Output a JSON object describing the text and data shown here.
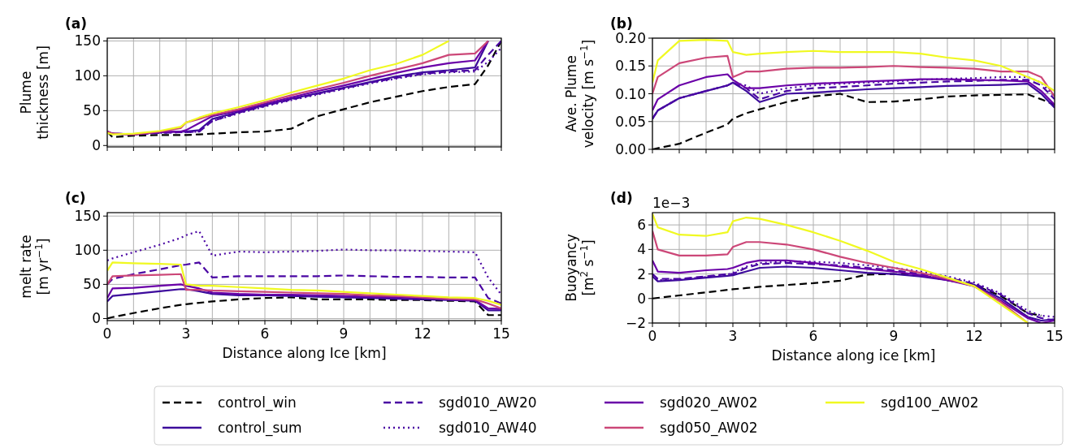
{
  "chart_data": [
    {
      "type": "line",
      "title": "(a)",
      "ylabel": "Plume\nthickness [m]",
      "xlim": [
        0,
        15
      ],
      "ylim": [
        -2,
        154
      ],
      "yticks": [
        0,
        50,
        100,
        150
      ],
      "tick_labels": "y",
      "grid": true,
      "legend": "bottom",
      "xticks": [
        0,
        {
          "value": 1,
          "label": null
        },
        {
          "value": 2,
          "label": null
        },
        3,
        {
          "value": 4,
          "label": null
        },
        {
          "value": 5,
          "label": null
        },
        6,
        {
          "value": 7,
          "label": null
        },
        {
          "value": 8,
          "label": null
        },
        9,
        {
          "value": 10,
          "label": null
        },
        {
          "value": 11,
          "label": null
        },
        12,
        {
          "value": 13,
          "label": null
        },
        {
          "value": 14,
          "label": null
        },
        15
      ],
      "x": [
        0,
        0.2,
        1,
        2,
        2.8,
        3,
        3.5,
        4,
        5,
        6,
        7,
        8,
        9,
        10,
        11,
        12,
        13,
        14,
        14.5,
        15
      ],
      "series": [
        {
          "name": "control_win",
          "color": "#000000",
          "line_style": "dashed",
          "values": [
            20,
            12,
            14,
            15,
            15,
            15,
            16,
            17,
            19,
            20,
            24,
            42,
            52,
            62,
            70,
            78,
            84,
            88,
            115,
            150
          ]
        },
        {
          "name": "control_sum",
          "color": "#3c0a9c",
          "line_style": "solid",
          "values": [
            20,
            17,
            16,
            19,
            20,
            20,
            22,
            38,
            48,
            58,
            67,
            75,
            83,
            91,
            99,
            105,
            108,
            112,
            150,
            null
          ]
        },
        {
          "name": "sgd010_AW20",
          "color": "#4a06a3",
          "line_style": "dashed",
          "values": [
            20,
            17,
            16,
            18,
            19,
            19,
            20,
            35,
            47,
            57,
            66,
            74,
            82,
            90,
            97,
            103,
            106,
            108,
            130,
            150
          ]
        },
        {
          "name": "sgd010_AW40",
          "color": "#4a06a3",
          "line_style": "dotted",
          "values": [
            20,
            17,
            16,
            18,
            19,
            19,
            20,
            35,
            46,
            56,
            65,
            73,
            81,
            89,
            96,
            102,
            105,
            106,
            120,
            140
          ]
        },
        {
          "name": "sgd020_AW02",
          "color": "#6a00a8",
          "line_style": "solid",
          "values": [
            20,
            17,
            16,
            19,
            20,
            22,
            32,
            42,
            50,
            60,
            69,
            78,
            86,
            95,
            104,
            112,
            118,
            122,
            150,
            null
          ]
        },
        {
          "name": "sgd050_AW02",
          "color": "#cc4778",
          "line_style": "solid",
          "values": [
            20,
            17,
            16,
            20,
            25,
            33,
            38,
            44,
            52,
            62,
            72,
            81,
            90,
            100,
            109,
            118,
            130,
            132,
            150,
            null
          ]
        },
        {
          "name": "sgd100_AW02",
          "color": "#f0f921",
          "line_style": "solid",
          "values": [
            18,
            16,
            17,
            21,
            27,
            33,
            40,
            46,
            55,
            65,
            76,
            86,
            96,
            108,
            117,
            130,
            150,
            null,
            null,
            null
          ]
        }
      ]
    },
    {
      "type": "line",
      "title": "(b)",
      "ylabel": "Ave. Plume\nvelocity [m s$^{−1}$]",
      "xlim": [
        0,
        15
      ],
      "ylim": [
        0,
        0.2
      ],
      "yticks": [
        {
          "value": 0,
          "label": "0.00"
        },
        {
          "value": 0.05,
          "label": "0.05"
        },
        {
          "value": 0.1,
          "label": "0.10"
        },
        {
          "value": 0.15,
          "label": "0.15"
        },
        {
          "value": 0.2,
          "label": "0.20"
        }
      ],
      "tick_labels": "y",
      "grid": true,
      "xticks": [
        0,
        {
          "value": 1,
          "label": null
        },
        {
          "value": 2,
          "label": null
        },
        3,
        {
          "value": 4,
          "label": null
        },
        {
          "value": 5,
          "label": null
        },
        6,
        {
          "value": 7,
          "label": null
        },
        {
          "value": 8,
          "label": null
        },
        9,
        {
          "value": 10,
          "label": null
        },
        {
          "value": 11,
          "label": null
        },
        12,
        {
          "value": 13,
          "label": null
        },
        {
          "value": 14,
          "label": null
        },
        15
      ],
      "x": [
        0,
        0.2,
        1,
        2,
        2.8,
        3,
        3.5,
        4,
        5,
        6,
        7,
        8,
        9,
        10,
        11,
        12,
        13,
        14,
        14.5,
        15
      ],
      "series": [
        {
          "color": "#000000",
          "line_style": "dashed",
          "values": [
            0,
            0.002,
            0.01,
            0.03,
            0.045,
            0.055,
            0.065,
            0.072,
            0.085,
            0.095,
            0.1,
            0.085,
            0.086,
            0.09,
            0.095,
            0.097,
            0.098,
            0.099,
            0.09,
            0.08
          ]
        },
        {
          "color": "#3c0a9c",
          "line_style": "solid",
          "values": [
            0.055,
            0.07,
            0.092,
            0.105,
            0.115,
            0.12,
            0.105,
            0.085,
            0.1,
            0.102,
            0.105,
            0.108,
            0.11,
            0.112,
            0.114,
            0.115,
            0.116,
            0.118,
            0.1,
            0.075
          ]
        },
        {
          "color": "#4a06a3",
          "line_style": "dashed",
          "values": [
            0.055,
            0.07,
            0.092,
            0.105,
            0.115,
            0.12,
            0.11,
            0.09,
            0.105,
            0.11,
            0.112,
            0.115,
            0.118,
            0.12,
            0.122,
            0.123,
            0.125,
            0.125,
            0.115,
            0.09
          ]
        },
        {
          "color": "#4a06a3",
          "line_style": "dotted",
          "values": [
            0.055,
            0.07,
            0.092,
            0.105,
            0.115,
            0.12,
            0.115,
            0.1,
            0.11,
            0.115,
            0.118,
            0.12,
            0.122,
            0.125,
            0.127,
            0.128,
            0.13,
            0.13,
            0.12,
            0.095
          ]
        },
        {
          "color": "#6a00a8",
          "line_style": "solid",
          "values": [
            0.07,
            0.09,
            0.115,
            0.13,
            0.135,
            0.125,
            0.11,
            0.11,
            0.115,
            0.118,
            0.12,
            0.122,
            0.124,
            0.126,
            0.126,
            0.125,
            0.124,
            0.122,
            0.105,
            0.08
          ]
        },
        {
          "color": "#cc4778",
          "line_style": "solid",
          "values": [
            0.1,
            0.13,
            0.155,
            0.165,
            0.168,
            0.13,
            0.14,
            0.14,
            0.145,
            0.147,
            0.147,
            0.148,
            0.15,
            0.148,
            0.147,
            0.145,
            0.14,
            0.14,
            0.13,
            0.095
          ]
        },
        {
          "color": "#f0f921",
          "line_style": "solid",
          "values": [
            0.12,
            0.16,
            0.195,
            0.197,
            0.195,
            0.175,
            0.17,
            0.172,
            0.175,
            0.177,
            0.175,
            0.175,
            0.175,
            0.172,
            0.165,
            0.16,
            0.15,
            0.13,
            0.12,
            0.105
          ]
        }
      ]
    },
    {
      "type": "line",
      "title": "(c)",
      "ylabel": "melt rate\n[m yr$^{−1}$]",
      "xlabel": "Distance along Ice [km]",
      "xlim": [
        0,
        15
      ],
      "ylim": [
        -3,
        155
      ],
      "yticks": [
        0,
        50,
        100,
        150
      ],
      "grid": true,
      "xticks": [
        0,
        {
          "value": 1,
          "label": null
        },
        {
          "value": 2,
          "label": null
        },
        3,
        {
          "value": 4,
          "label": null
        },
        {
          "value": 5,
          "label": null
        },
        6,
        {
          "value": 7,
          "label": null
        },
        {
          "value": 8,
          "label": null
        },
        9,
        {
          "value": 10,
          "label": null
        },
        {
          "value": 11,
          "label": null
        },
        12,
        {
          "value": 13,
          "label": null
        },
        {
          "value": 14,
          "label": null
        },
        15
      ],
      "x": [
        0,
        0.2,
        1,
        2,
        2.8,
        3,
        3.5,
        4,
        5,
        6,
        7,
        8,
        9,
        10,
        11,
        12,
        13,
        14,
        14.5,
        15
      ],
      "series": [
        {
          "color": "#000000",
          "line_style": "dashed",
          "values": [
            0,
            2,
            8,
            15,
            20,
            21,
            23,
            25,
            28,
            30,
            31,
            28,
            28,
            28,
            27,
            27,
            26,
            25,
            5,
            5
          ]
        },
        {
          "color": "#3c0a9c",
          "line_style": "solid",
          "values": [
            25,
            33,
            36,
            40,
            43,
            43,
            40,
            36,
            34,
            34,
            33,
            32,
            31,
            30,
            29,
            28,
            27,
            26,
            12,
            12
          ]
        },
        {
          "color": "#4a06a3",
          "line_style": "dashed",
          "values": [
            50,
            58,
            65,
            72,
            78,
            79,
            82,
            60,
            62,
            62,
            62,
            62,
            63,
            62,
            61,
            61,
            60,
            60,
            30,
            22
          ]
        },
        {
          "color": "#4a06a3",
          "line_style": "dotted",
          "values": [
            85,
            88,
            97,
            108,
            118,
            122,
            128,
            92,
            98,
            97,
            98,
            99,
            101,
            100,
            100,
            99,
            98,
            97,
            60,
            35
          ]
        },
        {
          "color": "#6a00a8",
          "line_style": "solid",
          "values": [
            30,
            44,
            45,
            48,
            50,
            48,
            44,
            38,
            36,
            35,
            35,
            34,
            33,
            32,
            31,
            30,
            28,
            27,
            15,
            14
          ]
        },
        {
          "color": "#cc4778",
          "line_style": "solid",
          "values": [
            50,
            62,
            63,
            64,
            65,
            42,
            42,
            41,
            40,
            39,
            38,
            37,
            36,
            34,
            33,
            31,
            29,
            28,
            22,
            15
          ]
        },
        {
          "color": "#f0f921",
          "line_style": "solid",
          "values": [
            70,
            82,
            81,
            80,
            79,
            50,
            48,
            48,
            46,
            44,
            42,
            41,
            39,
            37,
            35,
            33,
            31,
            30,
            26,
            20
          ]
        }
      ]
    },
    {
      "type": "line",
      "title": "(d)",
      "ylabel": "Buoyancy\n[m$^{2}$ s$^{−1}$]",
      "xlabel": "Distance along ice [km]",
      "annotations": [
        "1e−3"
      ],
      "xlim": [
        0,
        15
      ],
      "ylim": [
        -2,
        7
      ],
      "yticks": [
        {
          "value": -2,
          "label": "−2"
        },
        0,
        2,
        4,
        6
      ],
      "grid": true,
      "xticks": [
        0,
        {
          "value": 1,
          "label": null
        },
        {
          "value": 2,
          "label": null
        },
        3,
        {
          "value": 4,
          "label": null
        },
        {
          "value": 5,
          "label": null
        },
        6,
        {
          "value": 7,
          "label": null
        },
        {
          "value": 8,
          "label": null
        },
        9,
        {
          "value": 10,
          "label": null
        },
        {
          "value": 11,
          "label": null
        },
        12,
        {
          "value": 13,
          "label": null
        },
        {
          "value": 14,
          "label": null
        },
        15
      ],
      "x": [
        0,
        0.2,
        1,
        2,
        2.8,
        3,
        3.5,
        4,
        5,
        6,
        7,
        8,
        9,
        10,
        11,
        12,
        13,
        14,
        14.5,
        15
      ],
      "series": [
        {
          "color": "#000000",
          "line_style": "dashed",
          "values": [
            0,
            0.05,
            0.25,
            0.5,
            0.7,
            0.75,
            0.85,
            0.95,
            1.1,
            1.25,
            1.45,
            1.95,
            2,
            1.9,
            1.5,
            1.1,
            0.2,
            -1.2,
            -1.4,
            null
          ]
        },
        {
          "color": "#3c0a9c",
          "line_style": "solid",
          "values": [
            1.8,
            1.4,
            1.5,
            1.7,
            1.85,
            1.9,
            2.2,
            2.5,
            2.6,
            2.5,
            2.3,
            2.1,
            2,
            1.8,
            1.5,
            1.1,
            0,
            -1.5,
            -1.8,
            -1.7
          ]
        },
        {
          "color": "#4a06a3",
          "line_style": "dashed",
          "values": [
            2,
            1.6,
            1.6,
            1.8,
            2,
            2,
            2.5,
            2.8,
            2.9,
            2.8,
            2.7,
            2.5,
            2.3,
            2,
            1.7,
            1.2,
            0.3,
            -1.2,
            -1.6,
            -1.8
          ]
        },
        {
          "color": "#4a06a3",
          "line_style": "dotted",
          "values": [
            1.9,
            1.5,
            1.55,
            1.75,
            1.95,
            2.1,
            2.6,
            2.9,
            3,
            3,
            2.9,
            2.7,
            2.5,
            2.2,
            1.8,
            1.3,
            0.4,
            -1,
            -1.4,
            -1.5
          ]
        },
        {
          "color": "#6a00a8",
          "line_style": "solid",
          "values": [
            3.1,
            2.2,
            2.1,
            2.3,
            2.4,
            2.5,
            2.9,
            3.1,
            3.1,
            2.9,
            2.6,
            2.4,
            2.2,
            1.9,
            1.5,
            1,
            -0.2,
            -1.6,
            -2,
            -1.8
          ]
        },
        {
          "color": "#cc4778",
          "line_style": "solid",
          "values": [
            5.5,
            4,
            3.5,
            3.5,
            3.6,
            4.2,
            4.6,
            4.6,
            4.4,
            4,
            3.4,
            2.9,
            2.5,
            2.1,
            1.6,
            1,
            -0.3,
            -2,
            null,
            null
          ]
        },
        {
          "color": "#f0f921",
          "line_style": "solid",
          "values": [
            6.9,
            5.8,
            5.2,
            5.1,
            5.4,
            6.3,
            6.6,
            6.5,
            6,
            5.4,
            4.7,
            3.9,
            3,
            2.4,
            1.7,
            1,
            -0.5,
            -2,
            null,
            null
          ]
        }
      ]
    }
  ]
}
